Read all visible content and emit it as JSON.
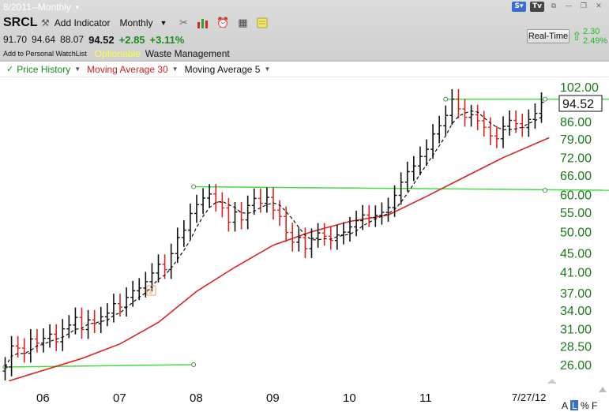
{
  "window": {
    "title": "8/2011--Monthly"
  },
  "toolbar": {
    "symbol": "SRCL",
    "add_indicator": "Add Indicator",
    "period": "Monthly"
  },
  "quote": {
    "open": "91.70",
    "high": "94.64",
    "low": "88.07",
    "last": "94.52",
    "change": "+2.85",
    "change_pct": "+3.11%"
  },
  "info": {
    "watchlist": "Add to Personal WatchList",
    "optionable": "Optionable",
    "company": "Waste Management"
  },
  "realtime": {
    "label": "Real-Time",
    "change": "2.30",
    "change_pct": "2.49%"
  },
  "indicators": [
    {
      "label": "Price History",
      "color": "#1b8c1b"
    },
    {
      "label": "Moving Average 30",
      "color": "#cc2222"
    },
    {
      "label": "Moving Average 5",
      "color": "#111111"
    }
  ],
  "colors": {
    "ma30": "#dd2222",
    "ma5": "#111111",
    "trendline": "#44dd44",
    "axis_label": "#1b7a1b",
    "up_bar": "#111111",
    "down_bar": "#dd2222"
  },
  "chart_data": {
    "type": "bar",
    "scale": "log",
    "y_ticks": [
      "102.00",
      "94.52",
      "86.00",
      "79.00",
      "72.00",
      "66.00",
      "60.00",
      "55.00",
      "50.00",
      "45.00",
      "41.00",
      "37.00",
      "34.00",
      "31.00",
      "28.50",
      "26.00"
    ],
    "y_tick_values": [
      102,
      86,
      79,
      72,
      66,
      60,
      55,
      50,
      45,
      41,
      37,
      34,
      31,
      28.5,
      26
    ],
    "x_labels": [
      "06",
      "07",
      "08",
      "09",
      "10",
      "11"
    ],
    "last_price": "94.52",
    "last_date": "7/27/12",
    "corner_labels": [
      "A",
      "L",
      "%",
      "F"
    ],
    "months_start": "2005-07",
    "closes": [
      25.7,
      28.5,
      28.2,
      27.5,
      29.5,
      28.9,
      29.6,
      30.2,
      29.1,
      31.0,
      31.6,
      32.8,
      30.9,
      32.4,
      31.8,
      32.9,
      33.5,
      35.1,
      34.5,
      36.2,
      37.4,
      37.9,
      39.1,
      40.8,
      42.6,
      41.5,
      44.9,
      48.6,
      50.4,
      54.7,
      57.1,
      59.0,
      60.2,
      57.8,
      56.2,
      52.4,
      55.1,
      53.0,
      56.9,
      58.9,
      57.5,
      59.2,
      55.6,
      53.9,
      49.8,
      47.5,
      48.6,
      46.0,
      48.4,
      49.7,
      48.9,
      47.9,
      49.2,
      49.9,
      51.2,
      52.8,
      54.3,
      53.6,
      54.2,
      55.0,
      56.3,
      59.8,
      63.8,
      67.2,
      69.1,
      72.4,
      75.0,
      80.9,
      84.2,
      88.6,
      96.0,
      91.5,
      87.8,
      88.9,
      86.3,
      83.6,
      80.1,
      79.0,
      84.0,
      86.5,
      85.1,
      83.5,
      86.9,
      89.5,
      94.52
    ],
    "ma30": [
      [
        2005.55,
        24.0
      ],
      [
        2006.5,
        26.8
      ],
      [
        2007.0,
        28.8
      ],
      [
        2007.5,
        32.0
      ],
      [
        2008.0,
        37.3
      ],
      [
        2008.5,
        42.0
      ],
      [
        2009.0,
        46.8
      ],
      [
        2009.5,
        50.0
      ],
      [
        2010.0,
        52.6
      ],
      [
        2010.5,
        54.3
      ],
      [
        2011.0,
        59.5
      ],
      [
        2011.5,
        65.5
      ],
      [
        2012.0,
        72.0
      ],
      [
        2012.6,
        79.4
      ]
    ],
    "trendlines": [
      {
        "from": [
          2005.5,
          25.7
        ],
        "to": [
          2007.96,
          26.0
        ]
      },
      {
        "from": [
          2007.96,
          62.4
        ],
        "to": [
          2013.5,
          61.3
        ]
      },
      {
        "from": [
          2011.25,
          96.0
        ],
        "to": [
          2013.5,
          96.0
        ]
      }
    ]
  }
}
